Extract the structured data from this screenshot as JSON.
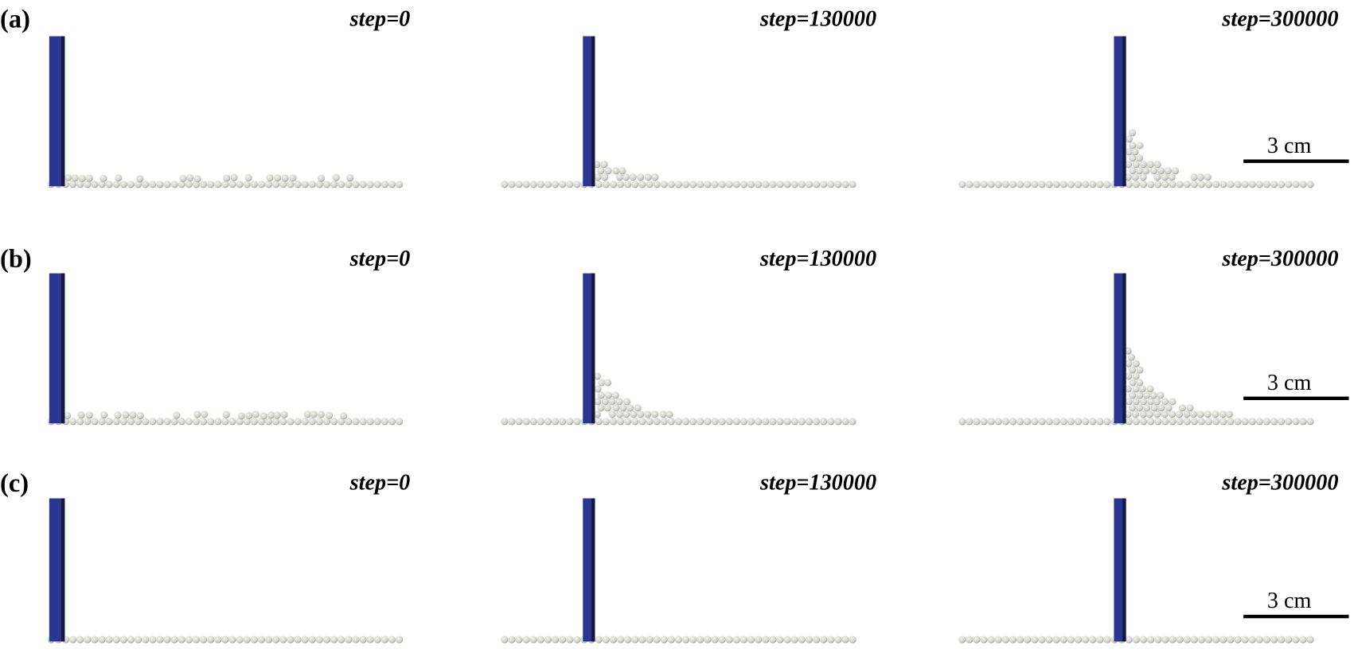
{
  "rows": [
    {
      "label": "(a)",
      "scale_bar": "3 cm",
      "panels": [
        {
          "step": "step=0"
        },
        {
          "step": "step=130000"
        },
        {
          "step": "step=300000"
        }
      ]
    },
    {
      "label": "(b)",
      "scale_bar": "3 cm",
      "panels": [
        {
          "step": "step=0"
        },
        {
          "step": "step=130000"
        },
        {
          "step": "step=300000"
        }
      ]
    },
    {
      "label": "(c)",
      "scale_bar": "3 cm",
      "panels": [
        {
          "step": "step=0"
        },
        {
          "step": "step=130000"
        },
        {
          "step": "step=300000"
        }
      ]
    }
  ]
}
